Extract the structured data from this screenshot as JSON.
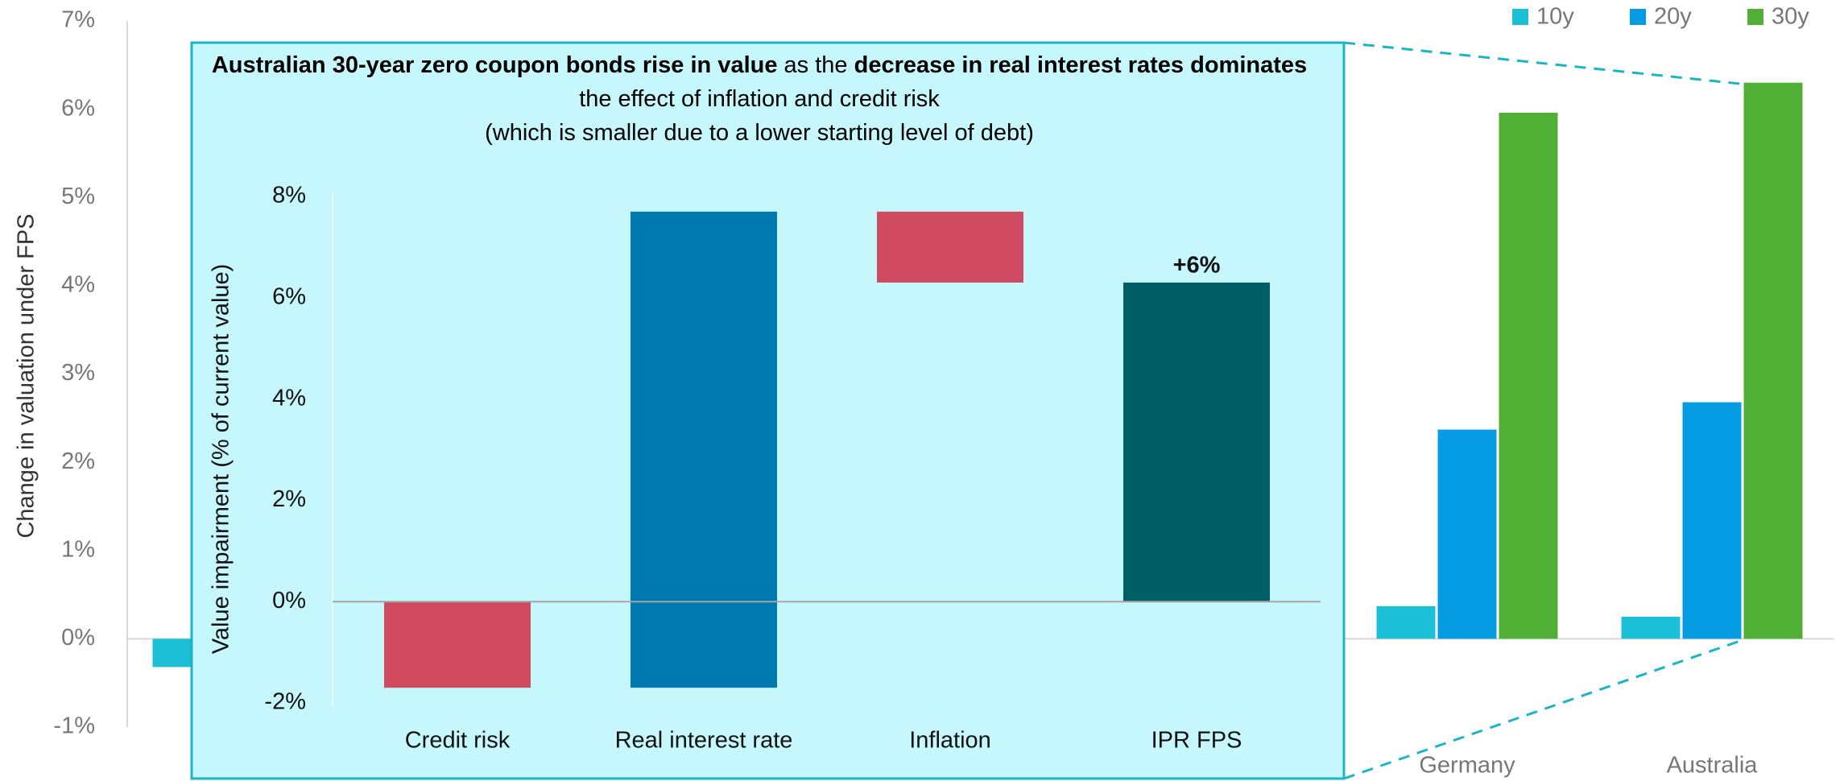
{
  "chart_data": [
    {
      "type": "bar",
      "y_label": "Change in valuation under FPS",
      "categories": [
        null,
        null,
        null,
        null,
        null,
        "Germany",
        "Australia"
      ],
      "series": [
        {
          "name": "10y",
          "color": "#1cc0d6",
          "values": [
            -0.32,
            null,
            null,
            null,
            null,
            0.37,
            0.25
          ]
        },
        {
          "name": "20y",
          "color": "#069ce3",
          "values": [
            null,
            null,
            null,
            null,
            null,
            2.37,
            2.68
          ]
        },
        {
          "name": "30y",
          "color": "#50b036",
          "values": [
            null,
            null,
            null,
            null,
            null,
            5.96,
            6.3
          ]
        }
      ],
      "ylim": [
        -1,
        7
      ],
      "yticks": [
        {
          "value": -1,
          "label": "-1%"
        },
        {
          "value": 0,
          "label": "0%"
        },
        {
          "value": 1,
          "label": "1%"
        },
        {
          "value": 2,
          "label": "2%"
        },
        {
          "value": 3,
          "label": "3%"
        },
        {
          "value": 4,
          "label": "4%"
        },
        {
          "value": 5,
          "label": "5%"
        },
        {
          "value": 6,
          "label": "6%"
        },
        {
          "value": 7,
          "label": "7%"
        }
      ],
      "legend": "top-right"
    },
    {
      "type": "waterfall",
      "title_segments": [
        {
          "text": "Australian 30-year zero coupon bonds rise in value",
          "bold": true
        },
        {
          "text": " as the ",
          "bold": false
        },
        {
          "text": "decrease in real interest rates dominates",
          "bold": true
        },
        {
          "text": " the effect of inflation and credit risk",
          "bold": false
        }
      ],
      "subtitle": "(which is smaller due to a lower starting level of debt)",
      "y_label": "Value impairment (% of current value)",
      "categories": [
        "Credit risk",
        "Real interest rate",
        "Inflation",
        "IPR FPS"
      ],
      "values": [
        -1.7,
        9.4,
        -1.4,
        6.3
      ],
      "is_total": [
        false,
        false,
        false,
        true
      ],
      "colors": [
        "#d04a60",
        "#0079b0",
        "#d04a60",
        "#005f66"
      ],
      "value_labels": [
        null,
        null,
        null,
        "+6%"
      ],
      "ylim": [
        -2,
        8
      ],
      "yticks": [
        {
          "value": -2,
          "label": "-2%"
        },
        {
          "value": 0,
          "label": "0%"
        },
        {
          "value": 2,
          "label": "2%"
        },
        {
          "value": 4,
          "label": "4%"
        },
        {
          "value": 6,
          "label": "6%"
        },
        {
          "value": 8,
          "label": "8%"
        }
      ]
    }
  ]
}
